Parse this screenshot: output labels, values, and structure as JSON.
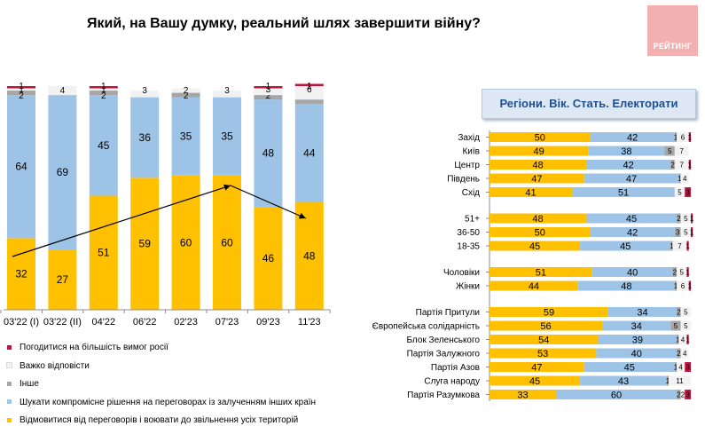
{
  "title": "Який, на Вашу думку, реальний шлях завершити війну?",
  "logo_text": "РЕЙТИНГ",
  "right_title": "Регіони. Вік. Стать. Електорати",
  "colors": {
    "fight": "#ffc000",
    "compromise": "#9dc3e6",
    "other": "#a6a6a6",
    "hard": "#f2f2f2",
    "agree": "#c0143c",
    "arrow": "#000000"
  },
  "legend": [
    {
      "label": "Погодитися на більшість вимог росії",
      "color": "#c0143c"
    },
    {
      "label": "Важко відповісти",
      "color": "#f2f2f2"
    },
    {
      "label": "Інше",
      "color": "#a6a6a6"
    },
    {
      "label": "Шукати компромісне рішення на переговорах із залученням інших країн",
      "color": "#9dc3e6"
    },
    {
      "label": "Відмовитися від переговорів і воювати до звільнення усіх територій",
      "color": "#ffc000"
    }
  ],
  "chart_data": [
    {
      "type": "bar",
      "stacked": true,
      "categories": [
        "03'22 (I)",
        "03'22 (II)",
        "04'22",
        "06'22",
        "02'23",
        "07'23",
        "09'23",
        "11'23"
      ],
      "series": [
        {
          "name": "Відмовитися від переговорів і воювати до звільнення усіх територій",
          "values": [
            32,
            27,
            51,
            59,
            60,
            60,
            46,
            48
          ]
        },
        {
          "name": "Шукати компромісне рішення на переговорах із залученням інших країн",
          "values": [
            64,
            69,
            45,
            36,
            35,
            35,
            48,
            44
          ]
        },
        {
          "name": "Інше",
          "values": [
            2,
            0,
            2,
            0,
            2,
            0,
            2,
            2
          ]
        },
        {
          "name": "Важко відповісти",
          "values": [
            1,
            4,
            1,
            3,
            2,
            3,
            3,
            6
          ]
        },
        {
          "name": "Погодитися на більшість вимог росії",
          "values": [
            1,
            0,
            1,
            0,
            0,
            0,
            1,
            1
          ]
        }
      ],
      "label_texts": [
        [
          "32",
          "64",
          "2",
          "1",
          "1"
        ],
        [
          "27",
          "69",
          "",
          "4",
          ""
        ],
        [
          "51",
          "45",
          "2",
          "1",
          "1"
        ],
        [
          "59",
          "36",
          "",
          "3",
          ""
        ],
        [
          "60",
          "35",
          "2",
          "2",
          ""
        ],
        [
          "60",
          "35",
          "",
          "3",
          ""
        ],
        [
          "46",
          "48",
          "2",
          "3",
          "1"
        ],
        [
          "48",
          "44",
          "2",
          "6",
          "1"
        ]
      ],
      "ylim": [
        0,
        100
      ]
    },
    {
      "type": "bar",
      "orientation": "horizontal",
      "stacked": true,
      "groups": [
        {
          "rows": [
            {
              "label": "Захід",
              "values": [
                50,
                42,
                1,
                6,
                1
              ],
              "texts": [
                "50",
                "42",
                "1",
                "6",
                "1"
              ]
            },
            {
              "label": "Київ",
              "values": [
                49,
                38,
                5,
                7,
                0
              ],
              "texts": [
                "49",
                "38",
                "5",
                "7",
                ""
              ]
            },
            {
              "label": "Центр",
              "values": [
                48,
                42,
                2,
                7,
                1
              ],
              "texts": [
                "48",
                "42",
                "2",
                "7",
                "1"
              ]
            },
            {
              "label": "Південь",
              "values": [
                47,
                47,
                1,
                4,
                0
              ],
              "texts": [
                "47",
                "47",
                "1",
                "4",
                ""
              ]
            },
            {
              "label": "Схід",
              "values": [
                41,
                51,
                0,
                5,
                3
              ],
              "texts": [
                "41",
                "51",
                "",
                "5",
                "3"
              ]
            }
          ]
        },
        {
          "rows": [
            {
              "label": "51+",
              "values": [
                48,
                45,
                2,
                5,
                1
              ],
              "texts": [
                "48",
                "45",
                "2",
                "5",
                "1"
              ]
            },
            {
              "label": "36-50",
              "values": [
                50,
                42,
                3,
                5,
                1
              ],
              "texts": [
                "50",
                "42",
                "3",
                "5",
                "1"
              ]
            },
            {
              "label": "18-35",
              "values": [
                45,
                45,
                1,
                7,
                1
              ],
              "texts": [
                "45",
                "45",
                "1",
                "7",
                "1"
              ]
            }
          ]
        },
        {
          "rows": [
            {
              "label": "Чоловіки",
              "values": [
                51,
                40,
                2,
                5,
                1
              ],
              "texts": [
                "51",
                "40",
                "2",
                "5",
                "1"
              ]
            },
            {
              "label": "Жінки",
              "values": [
                44,
                48,
                1,
                6,
                1
              ],
              "texts": [
                "44",
                "48",
                "1",
                "6",
                "1"
              ]
            }
          ]
        },
        {
          "rows": [
            {
              "label": "Партія Притули",
              "values": [
                59,
                34,
                2,
                5,
                0
              ],
              "texts": [
                "59",
                "34",
                "2",
                "5",
                ""
              ]
            },
            {
              "label": "Європейська солідарність",
              "values": [
                56,
                34,
                5,
                5,
                0
              ],
              "texts": [
                "56",
                "34",
                "5",
                "5",
                ""
              ]
            },
            {
              "label": "Блок Зеленського",
              "values": [
                54,
                39,
                1,
                4,
                1
              ],
              "texts": [
                "54",
                "39",
                "1",
                "4",
                "1"
              ]
            },
            {
              "label": "Партія Залужного",
              "values": [
                53,
                40,
                2,
                4,
                0
              ],
              "texts": [
                "53",
                "40",
                "2",
                "4",
                ""
              ]
            },
            {
              "label": "Партія Азов",
              "values": [
                47,
                45,
                1,
                4,
                3
              ],
              "texts": [
                "47",
                "45",
                "1",
                "4",
                "3"
              ]
            },
            {
              "label": "Слуга народу",
              "values": [
                45,
                43,
                1,
                11,
                0
              ],
              "texts": [
                "45",
                "43",
                "1",
                "11",
                ""
              ]
            },
            {
              "label": "Партія  Разумкова",
              "values": [
                33,
                60,
                2,
                2,
                3
              ],
              "texts": [
                "33",
                "60",
                "2",
                "2",
                "3"
              ]
            }
          ]
        }
      ],
      "xlim": [
        0,
        100
      ]
    }
  ]
}
